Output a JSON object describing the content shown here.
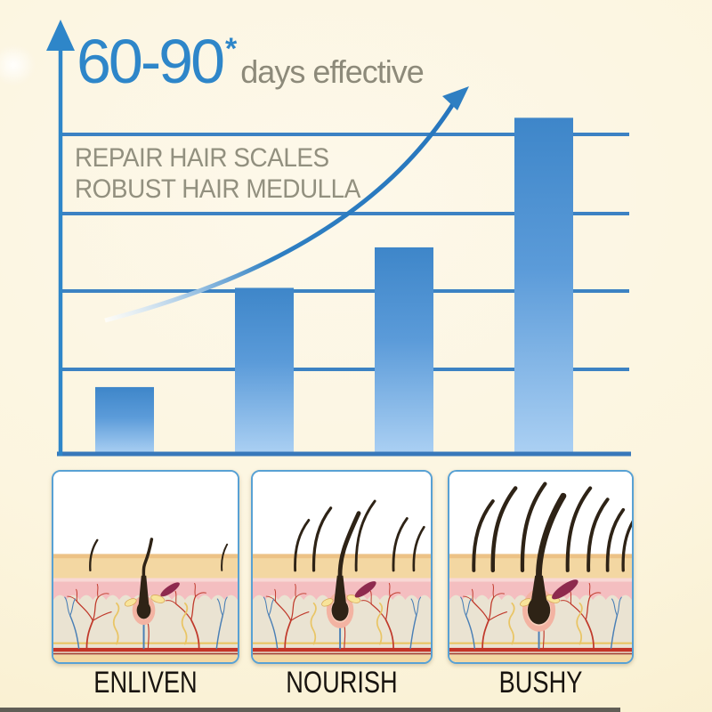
{
  "header": {
    "range": "60-90",
    "asterisk": "*",
    "suffix": "days effective"
  },
  "annotation": {
    "line1": "REPAIR HAIR SCALES",
    "line2": "ROBUST HAIR MEDULLA"
  },
  "chart_data": {
    "type": "bar",
    "title": "60-90* days effective",
    "categories": [
      "",
      "",
      "",
      ""
    ],
    "values": [
      16.5,
      41,
      51,
      83
    ],
    "ylim": [
      0,
      100
    ],
    "xlabel": "",
    "ylabel": "",
    "grid": "horizontal",
    "gridlines_y": [
      20,
      40,
      60,
      80
    ],
    "legend": "none",
    "annotations": [
      "REPAIR HAIR SCALES",
      "ROBUST HAIR MEDULLA"
    ],
    "trend_arrow": "rising exponential curve with arrowhead from first bar to above last bar"
  },
  "icons": {
    "y_axis": "up-arrow-icon",
    "trend": "rising-arrow-icon"
  },
  "panels": [
    {
      "label": "ENLIVEN",
      "hair_count": 3,
      "illustration": {
        "follicle": {
          "halo": 13,
          "bulb": 8,
          "hairW": 3.5,
          "tipDX": 9,
          "tipY": 78,
          "muscle": 13
        },
        "hairs": [
          {
            "x": 42,
            "len": 35,
            "w": 2.4,
            "dx": 8
          },
          {
            "x": 192,
            "len": 30,
            "w": 2,
            "dx": 6
          }
        ]
      }
    },
    {
      "label": "NOURISH",
      "hair_count": 6,
      "illustration": {
        "follicle": {
          "halo": 16,
          "bulb": 10,
          "hairW": 5,
          "tipDX": 22,
          "tipY": 48,
          "muscle": 15
        },
        "hairs": [
          {
            "x": 50,
            "len": 58,
            "w": 3,
            "dx": 16
          },
          {
            "x": 72,
            "len": 72,
            "w": 3.4,
            "dx": 20
          },
          {
            "x": 122,
            "len": 80,
            "w": 3,
            "dx": 22
          },
          {
            "x": 166,
            "len": 60,
            "w": 3,
            "dx": 16
          },
          {
            "x": 190,
            "len": 50,
            "w": 2.8,
            "dx": 12
          }
        ]
      }
    },
    {
      "label": "BUSHY",
      "hair_count": 8,
      "illustration": {
        "follicle": {
          "halo": 19,
          "bulb": 13,
          "hairW": 7,
          "tipDX": 28,
          "tipY": 28,
          "muscle": 18
        },
        "hairs": [
          {
            "x": 28,
            "len": 80,
            "w": 4,
            "dx": 22
          },
          {
            "x": 50,
            "len": 95,
            "w": 4.6,
            "dx": 26
          },
          {
            "x": 84,
            "len": 100,
            "w": 4.4,
            "dx": 26
          },
          {
            "x": 136,
            "len": 95,
            "w": 4.2,
            "dx": 26
          },
          {
            "x": 160,
            "len": 82,
            "w": 4,
            "dx": 22
          },
          {
            "x": 182,
            "len": 70,
            "w": 3.8,
            "dx": 18
          },
          {
            "x": 200,
            "len": 58,
            "w": 3.4,
            "dx": 12
          }
        ]
      }
    }
  ],
  "colors": {
    "accent_blue": "#2e86c9",
    "grid_blue": "#3c82c3",
    "baseline_blue": "#3878ba",
    "bar_top": "#3e86c9",
    "bar_mid": "#5b9bd9",
    "bar_bottom": "#abd0f3",
    "text_gray": "#92907f",
    "label_black": "#18140f",
    "background_cream": "#fcf5df",
    "panel_border": "#58a1d4",
    "panel": {
      "sand": "#f3d7a2",
      "sand_edge": "#ecc286",
      "pink": "#f4bec0",
      "pink_light": "#f8d8d5",
      "dermis": "#eae3d2",
      "yellow": "#e9c565",
      "red_line": "#c43427",
      "red_line_dark": "#a03c2d",
      "vessel_red": "#c0392b",
      "vessel_blue": "#4a7fb5",
      "muscle": "#8e2a4e",
      "halo_outer": "#f3b3a2",
      "halo_inner": "#f8cfbc",
      "gland": "#f8e49a",
      "gland_stroke": "#d8a855",
      "hair_dark": "#2e2316"
    }
  }
}
